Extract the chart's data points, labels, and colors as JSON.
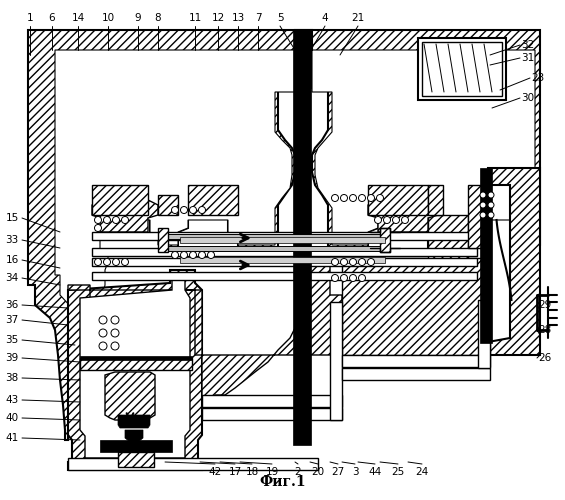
{
  "title": "Фиг.1",
  "bg": "#ffffff",
  "lc": "#000000"
}
